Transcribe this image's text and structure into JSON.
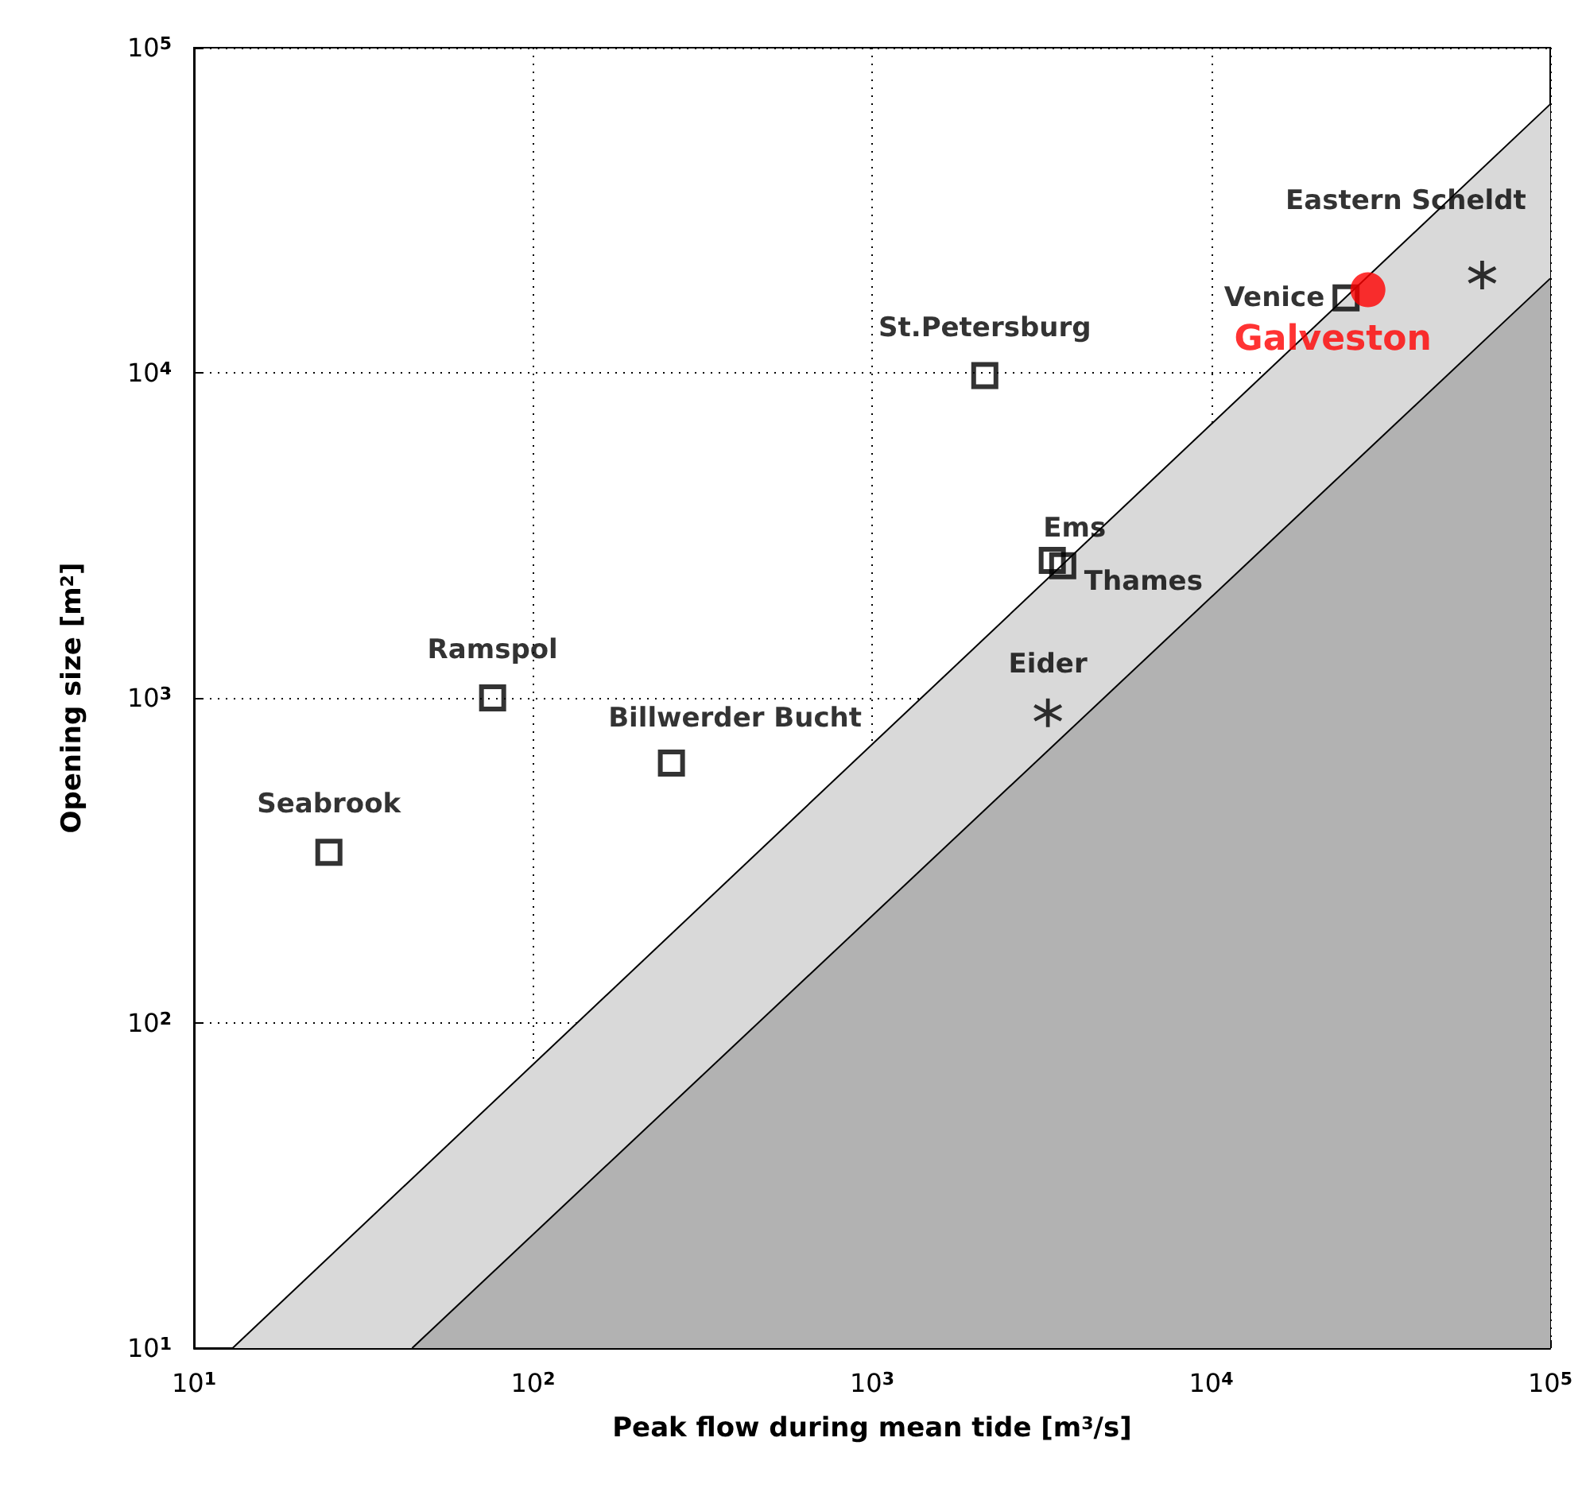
{
  "chart_data": {
    "type": "scatter",
    "xlabel": "Peak flow during mean tide [m$^{3}$/s]",
    "ylabel": "Opening size [m$^{2}$]",
    "log": "xy",
    "grid": true,
    "legend": false,
    "xlim": [
      10,
      100000
    ],
    "ylim": [
      10,
      100000
    ],
    "xticks": [
      {
        "value": 10,
        "label": "10$^{1}$"
      },
      {
        "value": 100,
        "label": "10$^{2}$"
      },
      {
        "value": 1000,
        "label": "10$^{3}$"
      },
      {
        "value": 10000,
        "label": "10$^{4}$"
      },
      {
        "value": 100000,
        "label": "10$^{5}$"
      }
    ],
    "yticks": [
      {
        "value": 10,
        "label": "10$^{1}$"
      },
      {
        "value": 100,
        "label": "10$^{2}$"
      },
      {
        "value": 1000,
        "label": "10$^{3}$"
      },
      {
        "value": 10000,
        "label": "10$^{4}$"
      },
      {
        "value": 100000,
        "label": "10$^{5}$"
      }
    ],
    "series": [
      {
        "type": "area",
        "color": "#d9d9d9",
        "marker": "none",
        "x": [
          13,
          100000
        ],
        "values": [
          10,
          67000
        ]
      },
      {
        "type": "area",
        "color": "#b2b2b2",
        "marker": "none",
        "x": [
          44,
          100000
        ],
        "values": [
          10,
          19500
        ]
      },
      {
        "name": "Seabrook",
        "color": "#000000",
        "marker": "square",
        "x": [
          25
        ],
        "values": [
          335
        ]
      },
      {
        "name": "Ramspol",
        "color": "#000000",
        "marker": "square",
        "x": [
          76
        ],
        "values": [
          1000
        ]
      },
      {
        "name": "Billwerder Bucht",
        "color": "#000000",
        "marker": "square",
        "x": [
          256
        ],
        "values": [
          630
        ]
      },
      {
        "name": "St.Petersburg",
        "color": "#000000",
        "marker": "square",
        "x": [
          2150
        ],
        "values": [
          9800
        ]
      },
      {
        "name": "Ems",
        "color": "#000000",
        "marker": "square",
        "x": [
          3400
        ],
        "values": [
          2650
        ]
      },
      {
        "name": "Thames",
        "color": "#000000",
        "marker": "square",
        "x": [
          3650
        ],
        "values": [
          2550
        ]
      },
      {
        "name": "Eider",
        "color": "#000000",
        "marker": "cross",
        "x": [
          3300
        ],
        "values": [
          900
        ]
      },
      {
        "name": "Venice",
        "color": "#000000",
        "marker": "square",
        "x": [
          25000
        ],
        "values": [
          17000
        ]
      },
      {
        "name": "Galveston",
        "color": "#ff0000",
        "marker": "circle",
        "x": [
          29000
        ],
        "values": [
          18000
        ]
      },
      {
        "name": "Eastern Scheldt",
        "color": "#000000",
        "marker": "cross",
        "x": [
          63000
        ],
        "values": [
          20000
        ]
      }
    ]
  }
}
